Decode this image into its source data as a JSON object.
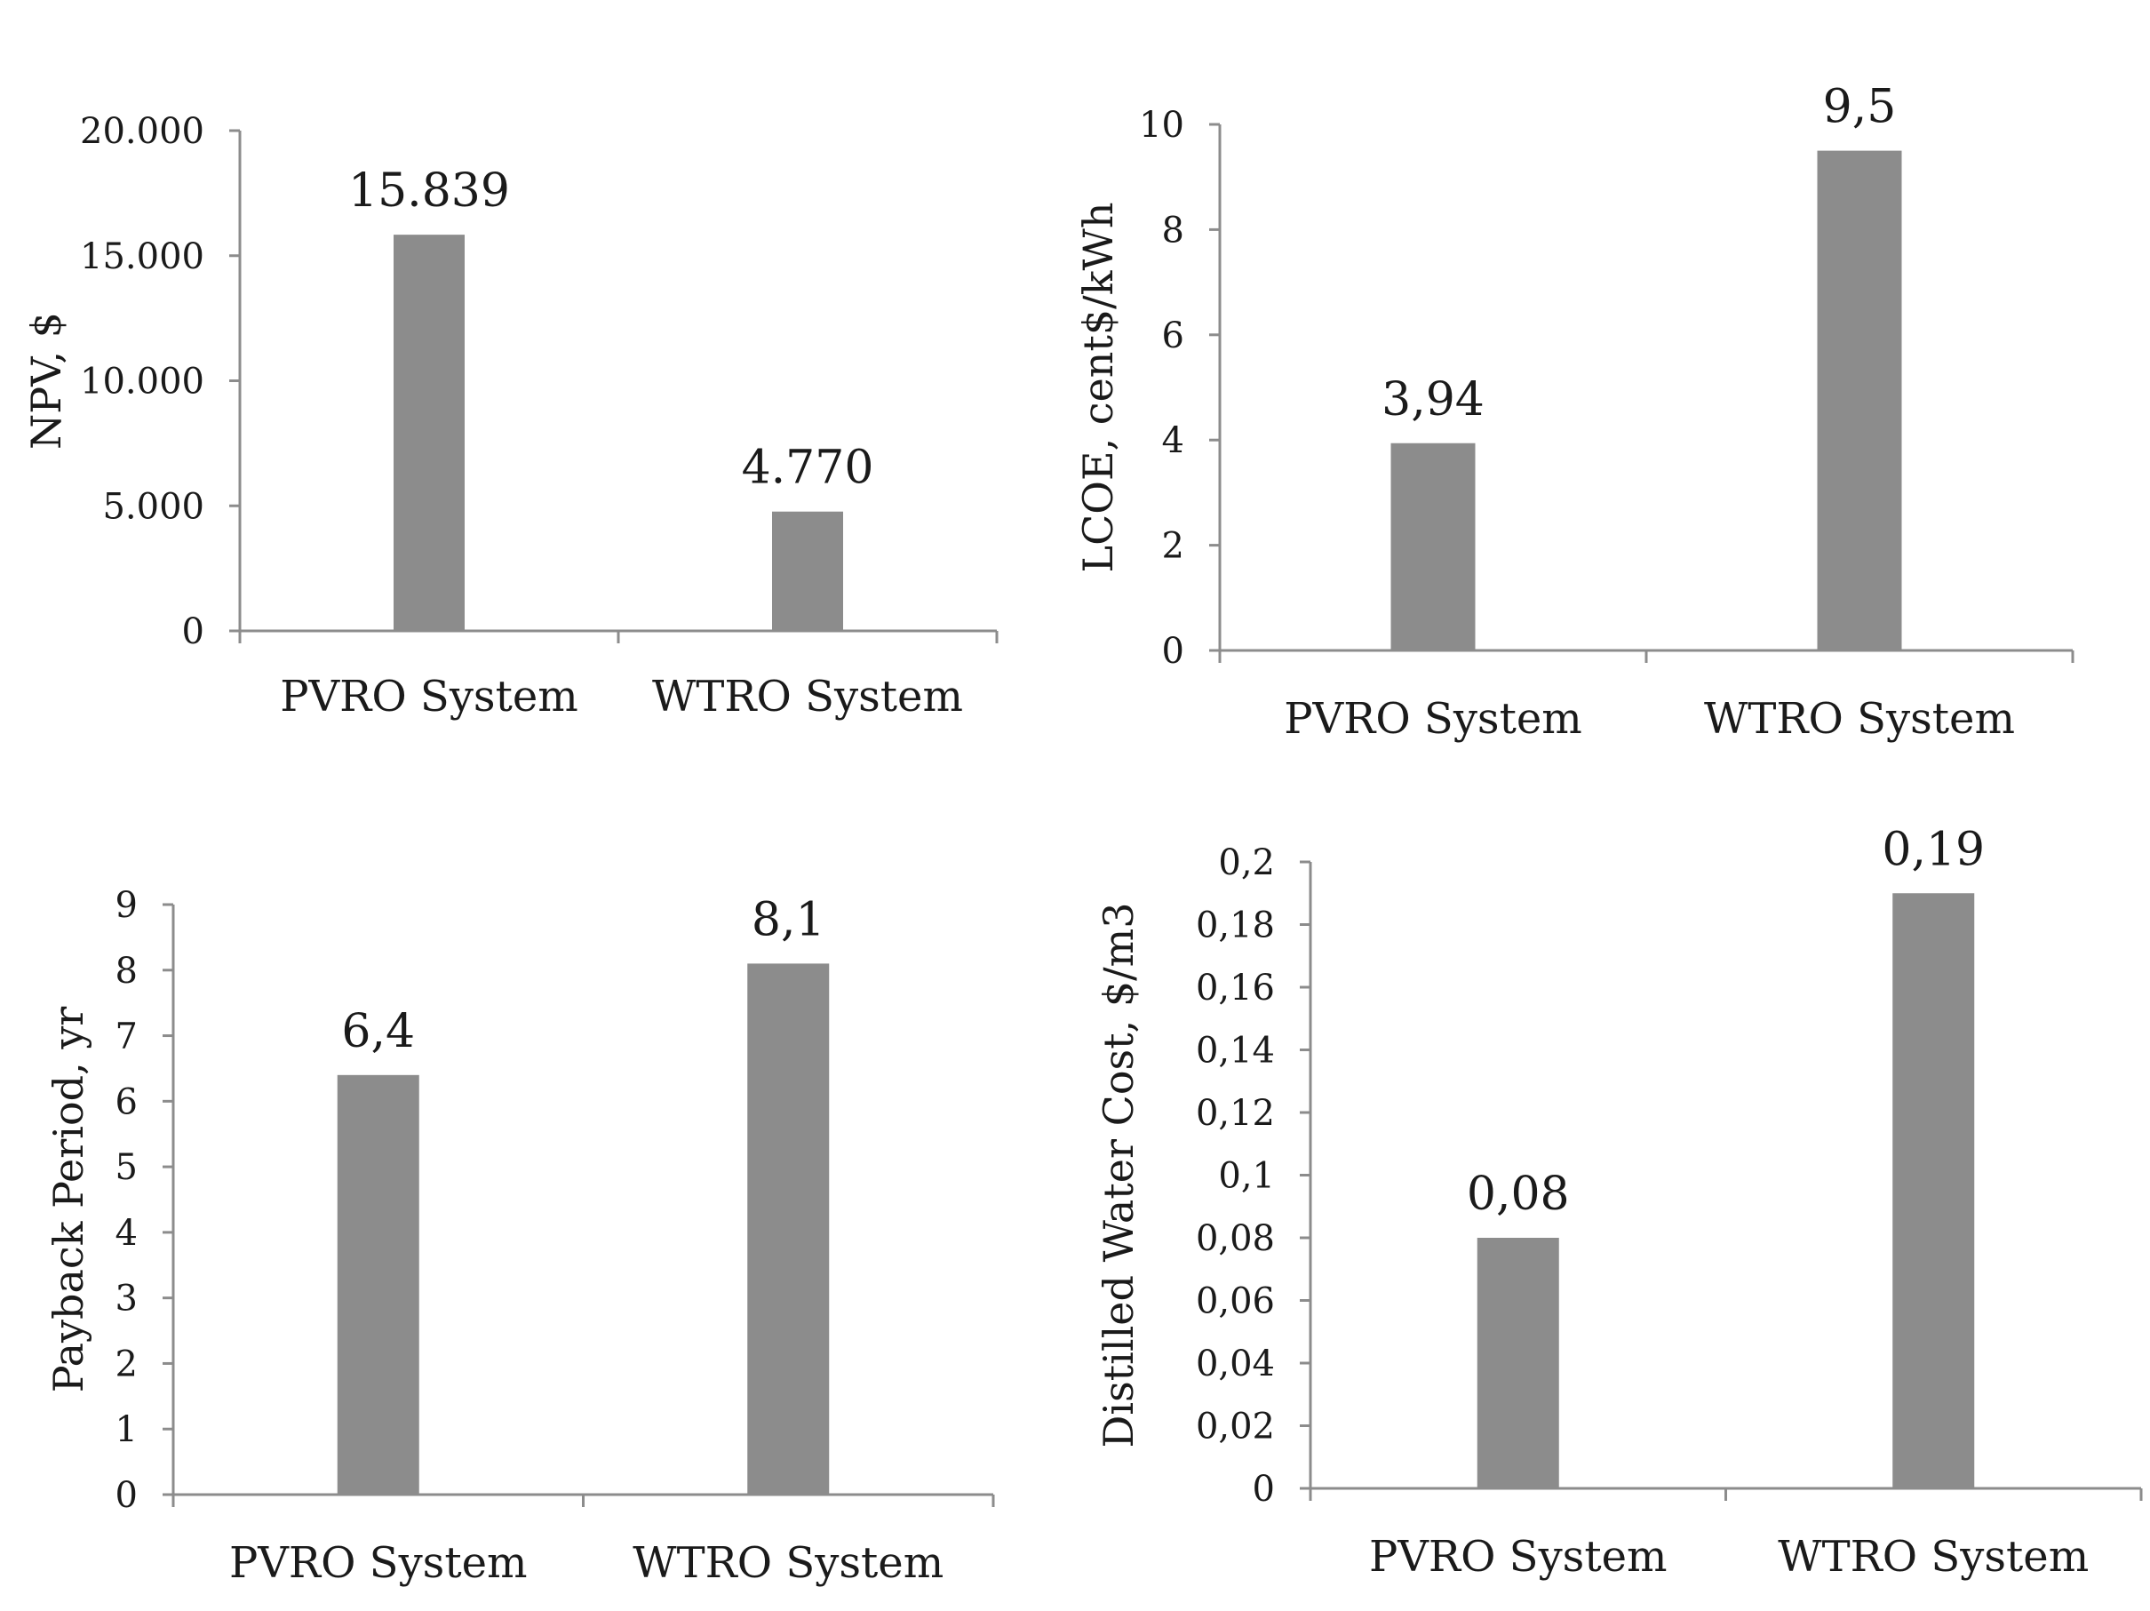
{
  "chart_data": [
    {
      "type": "bar",
      "categories": [
        "PVRO System",
        "WTRO System"
      ],
      "values": [
        15839,
        4770
      ],
      "data_labels": [
        "15.839",
        "4.770"
      ],
      "ylabel": "NPV, $",
      "ylim": [
        0,
        20000
      ],
      "yticks": [
        "0",
        "5.000",
        "10.000",
        "15.000",
        "20.000"
      ],
      "grid": false,
      "legend": "none",
      "bar_color": "#8c8c8c"
    },
    {
      "type": "bar",
      "categories": [
        "PVRO System",
        "WTRO System"
      ],
      "values": [
        3.94,
        9.5
      ],
      "data_labels": [
        "3,94",
        "9,5"
      ],
      "ylabel": "LCOE,  cent$/kWh",
      "ylim": [
        0,
        10
      ],
      "yticks": [
        "0",
        "2",
        "4",
        "6",
        "8",
        "10"
      ],
      "grid": false,
      "legend": "none",
      "bar_color": "#8c8c8c"
    },
    {
      "type": "bar",
      "categories": [
        "PVRO System",
        "WTRO System"
      ],
      "values": [
        6.4,
        8.1
      ],
      "data_labels": [
        "6,4",
        "8,1"
      ],
      "ylabel": "Payback Period, yr",
      "ylim": [
        0,
        9
      ],
      "yticks": [
        "0",
        "1",
        "2",
        "3",
        "4",
        "5",
        "6",
        "7",
        "8",
        "9"
      ],
      "grid": false,
      "legend": "none",
      "bar_color": "#8c8c8c"
    },
    {
      "type": "bar",
      "categories": [
        "PVRO System",
        "WTRO System"
      ],
      "values": [
        0.08,
        0.19
      ],
      "data_labels": [
        "0,08",
        "0,19"
      ],
      "ylabel": "Distilled Water Cost, $/m3",
      "ylim": [
        0,
        0.2
      ],
      "yticks": [
        "0",
        "0,02",
        "0,04",
        "0,06",
        "0,08",
        "0,1",
        "0,12",
        "0,14",
        "0,16",
        "0,18",
        "0,2"
      ],
      "grid": false,
      "legend": "none",
      "bar_color": "#8c8c8c"
    }
  ]
}
